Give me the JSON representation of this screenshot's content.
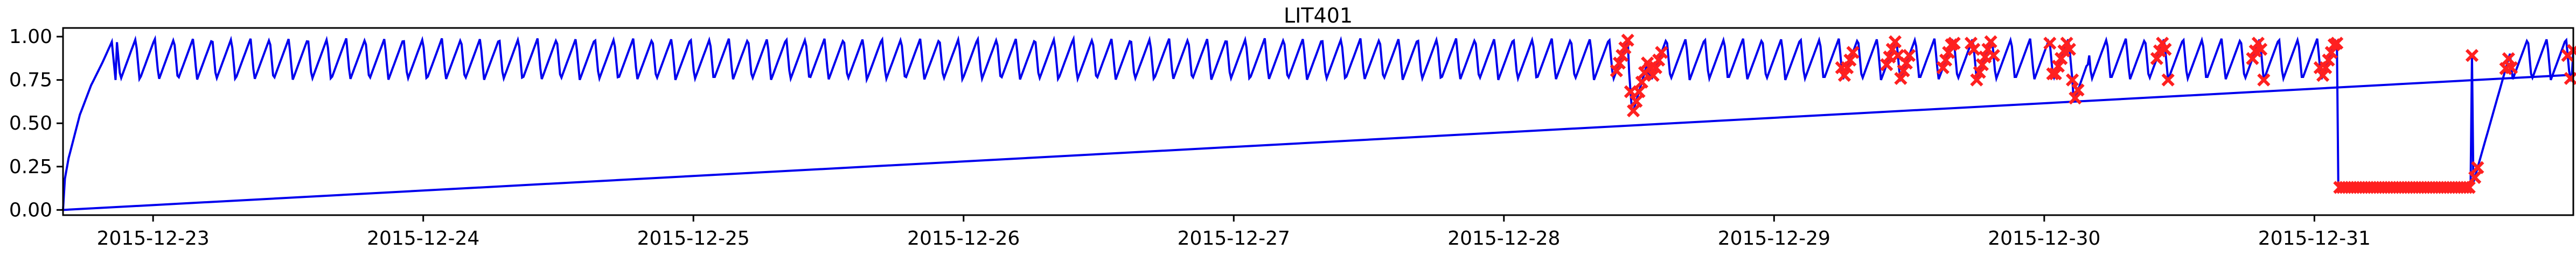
{
  "chart_data": {
    "type": "line",
    "title": "LIT401",
    "xlabel": "",
    "ylabel": "",
    "x_start": "2015-12-22 16:00",
    "x_end": "2015-12-31 23:00",
    "xticks": [
      "2015-12-23",
      "2015-12-24",
      "2015-12-25",
      "2015-12-26",
      "2015-12-27",
      "2015-12-28",
      "2015-12-29",
      "2015-12-30",
      "2015-12-31"
    ],
    "yticks": [
      "0.00",
      "0.25",
      "0.50",
      "0.75",
      "1.00"
    ],
    "ylim": [
      -0.03,
      1.05
    ],
    "grid": false,
    "colors": {
      "series": "#0000ee",
      "anomaly": "#ff2020"
    },
    "series": [
      {
        "style": "sawtooth-level-signal",
        "points": [
          [
            "2015-12-22 16:00",
            0.0
          ],
          [
            "2015-12-22 16:10",
            0.18
          ],
          [
            "2015-12-22 16:30",
            0.3
          ],
          [
            "2015-12-22 17:30",
            0.55
          ],
          [
            "2015-12-22 18:30",
            0.72
          ],
          [
            "2015-12-22 19:30",
            0.85
          ],
          [
            "2015-12-22 20:20",
            0.97
          ],
          [
            "2015-12-22 20:40",
            0.75
          ],
          [
            "2015-12-28 11:00",
            0.75
          ],
          [
            "2015-12-28 12:00",
            0.5
          ],
          [
            "2015-12-28 13:00",
            0.8
          ],
          [
            "2015-12-29 12:00",
            0.75
          ],
          [
            "2015-12-29 13:00",
            0.72
          ],
          [
            "2015-12-29 15:00",
            0.97
          ],
          [
            "2015-12-30 02:00",
            0.75
          ],
          [
            "2015-12-30 03:00",
            0.6
          ],
          [
            "2015-12-30 04:00",
            0.85
          ],
          [
            "2015-12-30 10:00",
            0.75
          ],
          [
            "2015-12-30 11:00",
            0.55
          ],
          [
            "2015-12-30 12:30",
            0.8
          ],
          [
            "2015-12-30 13:30",
            0.97
          ],
          [
            "2015-12-31 00:00",
            0.85
          ],
          [
            "2015-12-31 01:00",
            1.0
          ],
          [
            "2015-12-31 02:00",
            0.13
          ],
          [
            "2015-12-31 14:00",
            0.13
          ],
          [
            "2015-12-31 17:00",
            0.75
          ],
          [
            "2015-12-31 18:00",
            0.97
          ],
          [
            "2015-12-31 23:00",
            0.92
          ]
        ]
      },
      {
        "style": "straight-wraparound-line",
        "points": [
          [
            "2015-12-22 16:00",
            0.0
          ],
          [
            "2015-12-31 23:00",
            0.78
          ]
        ]
      }
    ],
    "anomaly_regions": [
      {
        "start": "2015-12-28 10:00",
        "end": "2015-12-28 14:00"
      },
      {
        "start": "2015-12-29 06:00",
        "end": "2015-12-29 07:00"
      },
      {
        "start": "2015-12-29 10:00",
        "end": "2015-12-29 12:00"
      },
      {
        "start": "2015-12-29 15:00",
        "end": "2015-12-29 16:00"
      },
      {
        "start": "2015-12-29 17:30",
        "end": "2015-12-29 19:30"
      },
      {
        "start": "2015-12-30 00:30",
        "end": "2015-12-30 01:30"
      },
      {
        "start": "2015-12-30 01:30",
        "end": "2015-12-30 03:00"
      },
      {
        "start": "2015-12-30 10:00",
        "end": "2015-12-30 11:00"
      },
      {
        "start": "2015-12-30 18:30",
        "end": "2015-12-30 19:30"
      },
      {
        "start": "2015-12-31 00:30",
        "end": "2015-12-31 14:30"
      },
      {
        "start": "2015-12-31 17:00",
        "end": "2015-12-31 17:30"
      },
      {
        "start": "2015-12-31 22:30",
        "end": "2015-12-31 23:00"
      }
    ]
  }
}
